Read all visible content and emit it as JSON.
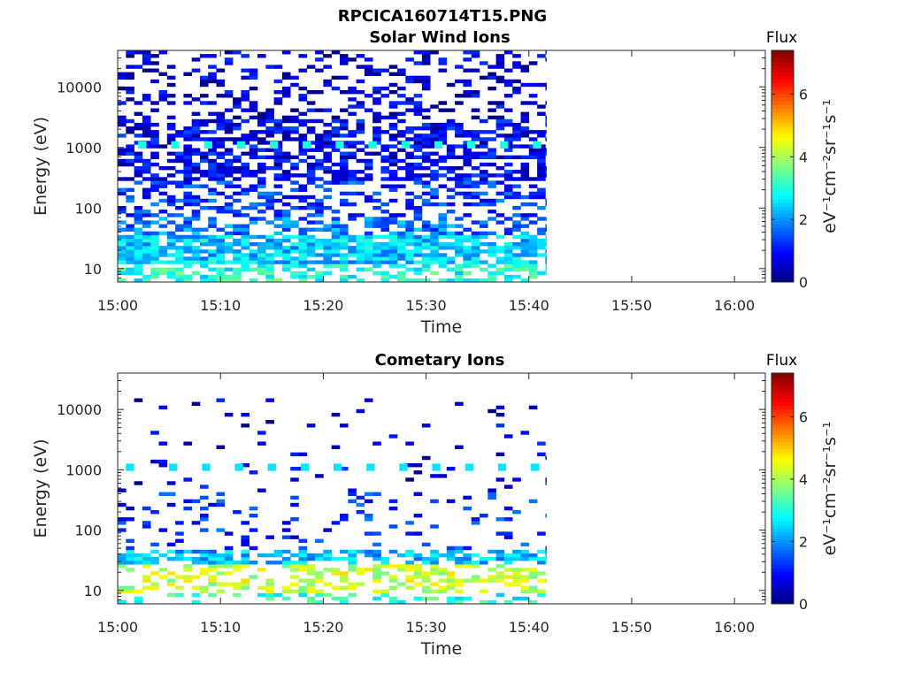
{
  "figure": {
    "title": "RPCICA160714T15.PNG"
  },
  "chart_data": [
    {
      "type": "heatmap",
      "title": "Solar Wind Ions",
      "xlabel": "Time",
      "ylabel": "Energy (eV)",
      "x_ticks": [
        "15:00",
        "15:10",
        "15:20",
        "15:30",
        "15:40",
        "15:50",
        "16:00"
      ],
      "x_tick_minutes": [
        0,
        10,
        20,
        30,
        40,
        50,
        60
      ],
      "xlim_minutes": [
        0,
        63
      ],
      "y_scale": "log",
      "ylim": [
        6,
        40000
      ],
      "y_ticks": [
        10,
        100,
        1000,
        10000
      ],
      "y_tick_labels": [
        "10",
        "100",
        "1000",
        "10000"
      ],
      "data_time_range_minutes": [
        0,
        41.7
      ],
      "colorbar": {
        "title": "Flux",
        "label": "eV⁻¹cm⁻²sr⁻¹s⁻¹",
        "range": [
          0,
          7.4
        ],
        "ticks": [
          0,
          2,
          4,
          6
        ],
        "tick_labels": [
          "0",
          "2",
          "4",
          "6"
        ],
        "colormap": "jet"
      },
      "energy_bands": [
        {
          "energy_range": [
            6,
            12
          ],
          "typical_flux": 3.0,
          "fill_fraction": 0.5
        },
        {
          "energy_range": [
            12,
            35
          ],
          "typical_flux": 2.4,
          "fill_fraction": 0.85
        },
        {
          "energy_range": [
            35,
            70
          ],
          "typical_flux": 1.8,
          "fill_fraction": 0.55
        },
        {
          "energy_range": [
            70,
            300
          ],
          "typical_flux": 1.3,
          "fill_fraction": 0.45
        },
        {
          "energy_range": [
            300,
            3000
          ],
          "typical_flux": 0.8,
          "fill_fraction": 0.6
        },
        {
          "energy_range": [
            3000,
            40000
          ],
          "typical_flux": 0.6,
          "fill_fraction": 0.3
        }
      ],
      "periodic_peaks": {
        "energy": 1100,
        "flux": 3.0,
        "minutes": [
          2,
          5.2,
          8.4,
          11.6,
          14.8,
          18,
          21.2,
          24.4,
          27.6,
          30.8,
          34,
          37.2,
          40.4
        ]
      }
    },
    {
      "type": "heatmap",
      "title": "Cometary Ions",
      "xlabel": "Time",
      "ylabel": "Energy (eV)",
      "x_ticks": [
        "15:00",
        "15:10",
        "15:20",
        "15:30",
        "15:40",
        "15:50",
        "16:00"
      ],
      "x_tick_minutes": [
        0,
        10,
        20,
        30,
        40,
        50,
        60
      ],
      "xlim_minutes": [
        0,
        63
      ],
      "y_scale": "log",
      "ylim": [
        6,
        40000
      ],
      "y_ticks": [
        10,
        100,
        1000,
        10000
      ],
      "y_tick_labels": [
        "10",
        "100",
        "1000",
        "10000"
      ],
      "data_time_range_minutes": [
        0,
        41.7
      ],
      "colorbar": {
        "title": "Flux",
        "label": "eV⁻¹cm⁻²sr⁻¹s⁻¹",
        "range": [
          0,
          7.4
        ],
        "ticks": [
          0,
          2,
          4,
          6
        ],
        "tick_labels": [
          "0",
          "2",
          "4",
          "6"
        ],
        "colormap": "jet"
      },
      "energy_bands": [
        {
          "energy_range": [
            6,
            9
          ],
          "typical_flux": 3.0,
          "fill_fraction": 0.25
        },
        {
          "energy_range": [
            9,
            28
          ],
          "typical_flux": 4.2,
          "fill_fraction": 0.45
        },
        {
          "energy_range": [
            28,
            45
          ],
          "typical_flux": 2.3,
          "fill_fraction": 0.6
        },
        {
          "energy_range": [
            45,
            400
          ],
          "typical_flux": 1.2,
          "fill_fraction": 0.12
        },
        {
          "energy_range": [
            400,
            3000
          ],
          "typical_flux": 0.7,
          "fill_fraction": 0.06
        },
        {
          "energy_range": [
            3000,
            15000
          ],
          "typical_flux": 0.6,
          "fill_fraction": 0.05
        }
      ],
      "periodic_peaks": {
        "energy": 1100,
        "flux": 2.6,
        "minutes": [
          0.8,
          5,
          8.2,
          11.4,
          14.6,
          17.8,
          21,
          24.2,
          27.4,
          30.6,
          33.8,
          37,
          40.2
        ]
      }
    }
  ]
}
